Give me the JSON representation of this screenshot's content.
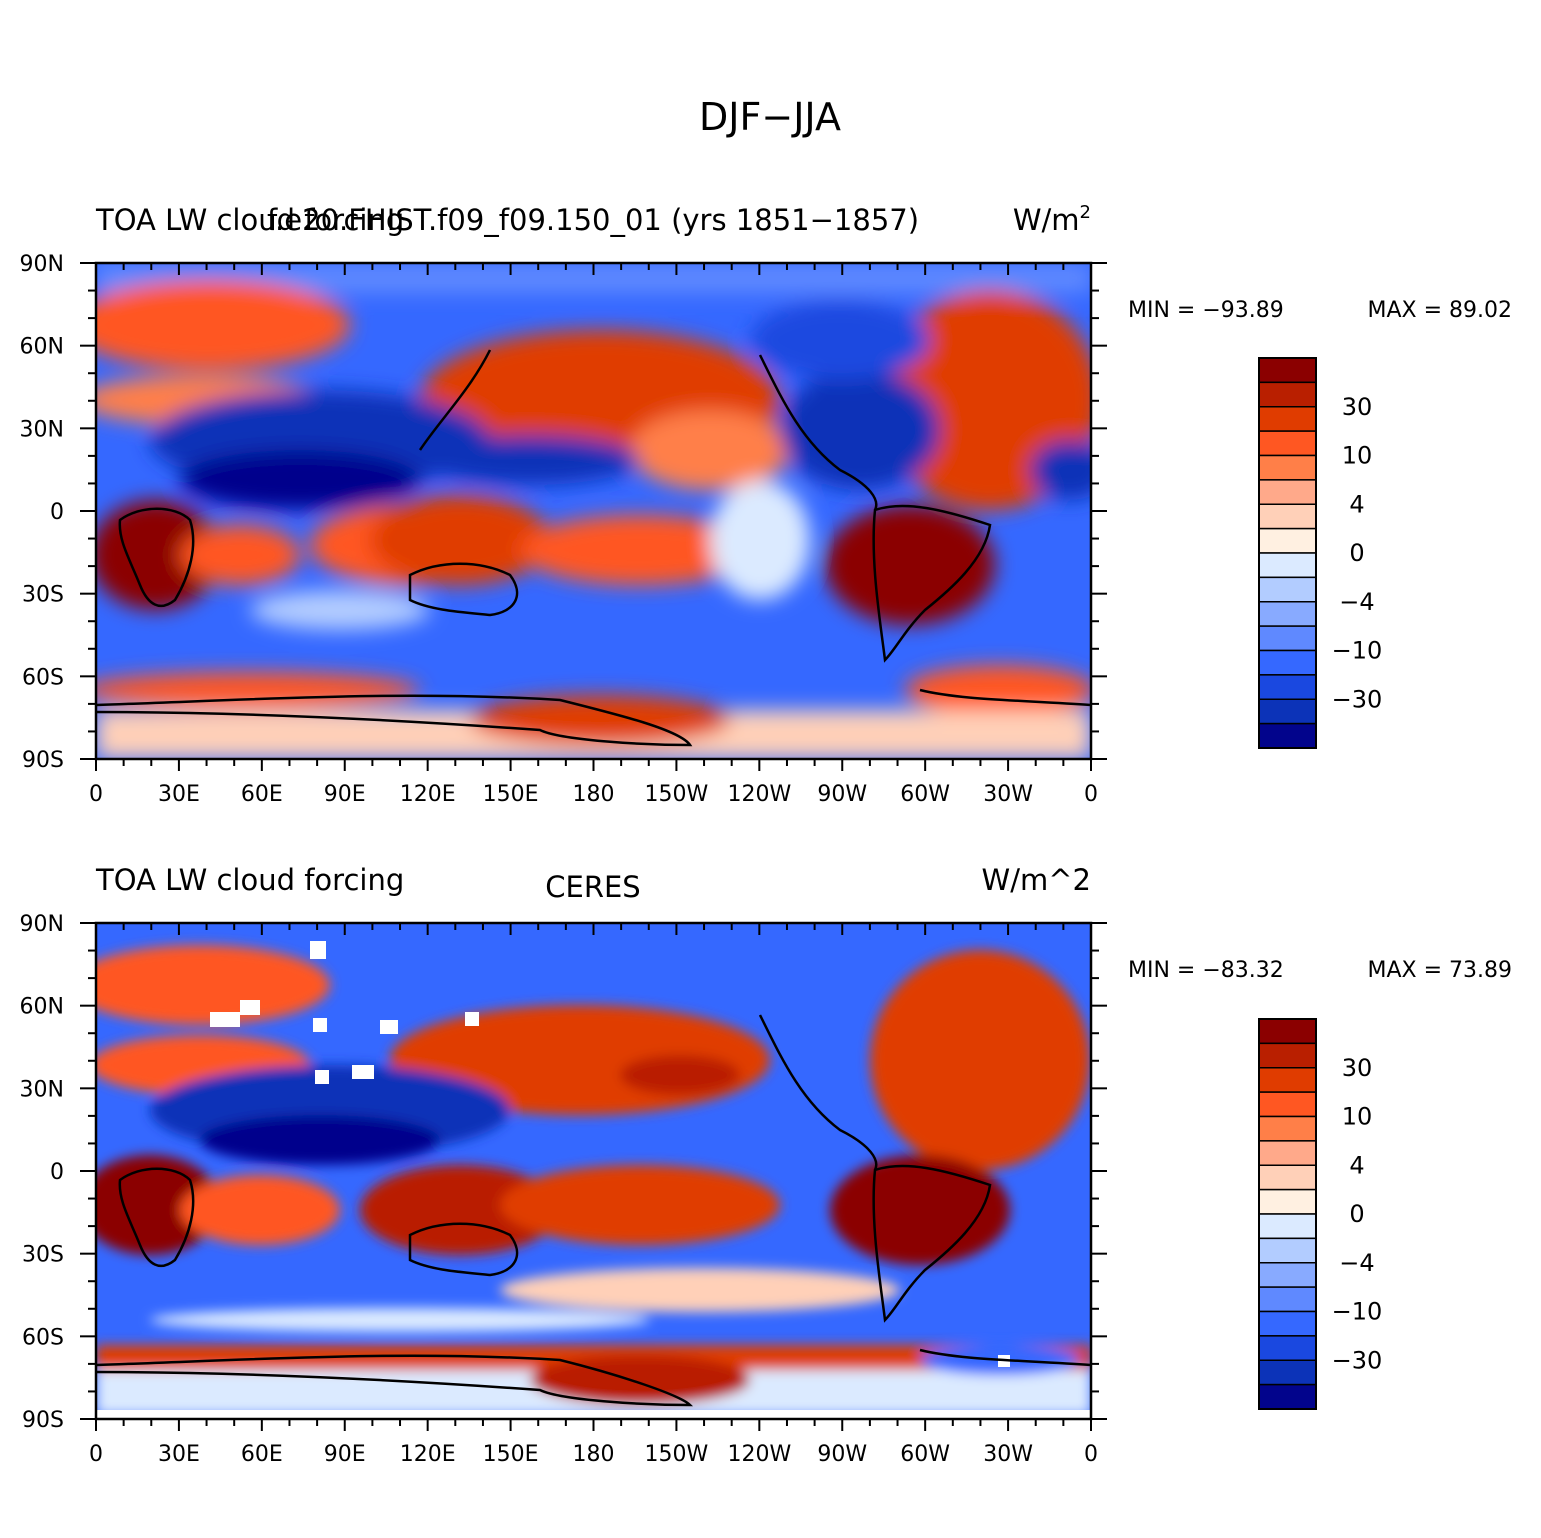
{
  "figure": {
    "title": "DJF−JJA"
  },
  "colorbar": {
    "colors": [
      "#8b0000",
      "#b91f00",
      "#e03c00",
      "#ff5722",
      "#ff7f48",
      "#ffa98a",
      "#ffd0b8",
      "#fff0e1",
      "#dbeaff",
      "#b2ccff",
      "#88aaff",
      "#5f89ff",
      "#3568ff",
      "#1a48e0",
      "#0c33b8",
      "#02048c"
    ],
    "labels": [
      "30",
      "10",
      "4",
      "0",
      "−4",
      "−10",
      "−30"
    ]
  },
  "axes": {
    "x_ticks": [
      "0",
      "30E",
      "60E",
      "90E",
      "120E",
      "150E",
      "180",
      "150W",
      "120W",
      "90W",
      "60W",
      "30W",
      "0"
    ],
    "y_ticks": [
      "90N",
      "60N",
      "30N",
      "0",
      "30S",
      "60S",
      "90S"
    ]
  },
  "panels": [
    {
      "left_title": "TOA LW cloud forcing",
      "center_title": "f.e20.FHIST.f09_f09.150_01 (yrs 1851−1857)",
      "right_title": "W/m",
      "right_title_sup": "2",
      "min_label": "MIN = −93.89",
      "max_label": "MAX =   89.02"
    },
    {
      "left_title": "TOA LW cloud forcing",
      "center_title": "CERES",
      "right_title": "W/m^2",
      "right_title_sup": "",
      "min_label": "MIN = −83.32",
      "max_label": "MAX =   73.89"
    }
  ]
}
